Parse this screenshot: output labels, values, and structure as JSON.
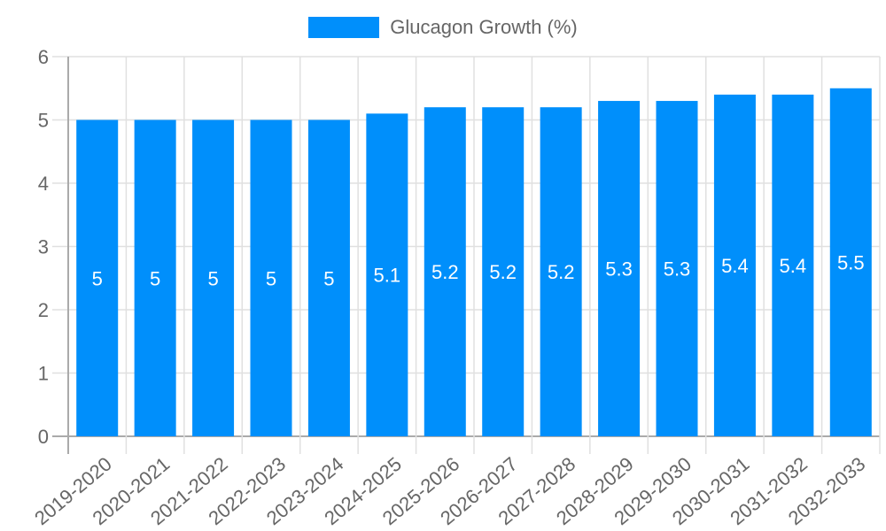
{
  "legend": {
    "label": "Glucagon Growth (%)",
    "color": "#008FFB"
  },
  "colors": {
    "bar": "#008FFB",
    "grid": "#e0e0e0",
    "axis": "#aaaaaa",
    "tick_text": "#666666",
    "bar_label": "#ffffff"
  },
  "chart_data": {
    "type": "bar",
    "title": "",
    "xlabel": "",
    "ylabel": "",
    "categories": [
      "2019-2020",
      "2020-2021",
      "2021-2022",
      "2022-2023",
      "2023-2024",
      "2024-2025",
      "2025-2026",
      "2026-2027",
      "2027-2028",
      "2028-2029",
      "2029-2030",
      "2030-2031",
      "2031-2032",
      "2032-2033"
    ],
    "series": [
      {
        "name": "Glucagon Growth (%)",
        "values": [
          5,
          5,
          5,
          5,
          5,
          5.1,
          5.2,
          5.2,
          5.2,
          5.3,
          5.3,
          5.4,
          5.4,
          5.5
        ]
      }
    ],
    "ylim": [
      0,
      6
    ],
    "yticks": [
      0,
      1,
      2,
      3,
      4,
      5,
      6
    ],
    "grid": true,
    "legend_position": "top",
    "data_labels": true
  }
}
